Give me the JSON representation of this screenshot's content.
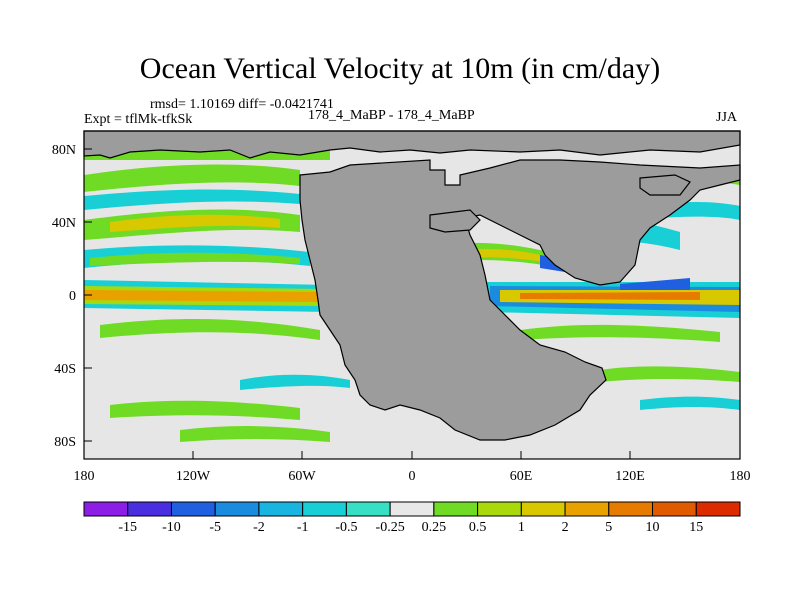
{
  "title": "Ocean Vertical Velocity at 10m (in cm/day)",
  "stats": "rmsd= 1.10169 diff= -0.0421741",
  "experiment": "Expt = tflMk-tfkSk",
  "case": "178_4_MaBP - 178_4_MaBP",
  "season": "JJA",
  "lat_ticks": [
    "80N",
    "40N",
    "0",
    "40S",
    "80S"
  ],
  "lon_ticks": [
    "180",
    "120W",
    "60W",
    "0",
    "60E",
    "120E",
    "180"
  ],
  "colorbar": {
    "labels": [
      "-15",
      "-10",
      "-5",
      "-2",
      "-1",
      "-0.5",
      "-0.25",
      "0.25",
      "0.5",
      "1",
      "2",
      "5",
      "10",
      "15"
    ],
    "colors": [
      "#8d1ee6",
      "#4a2fe0",
      "#1f5fe0",
      "#1b8be0",
      "#19b4e0",
      "#18cfd6",
      "#37e0c4",
      "#e8e8e8",
      "#6fdb25",
      "#a9d80c",
      "#d8c800",
      "#e9a100",
      "#e67b00",
      "#e05a00",
      "#dd2b00"
    ]
  },
  "land_color": "#9c9c9c",
  "ocean_color": "#e6e6e6"
}
